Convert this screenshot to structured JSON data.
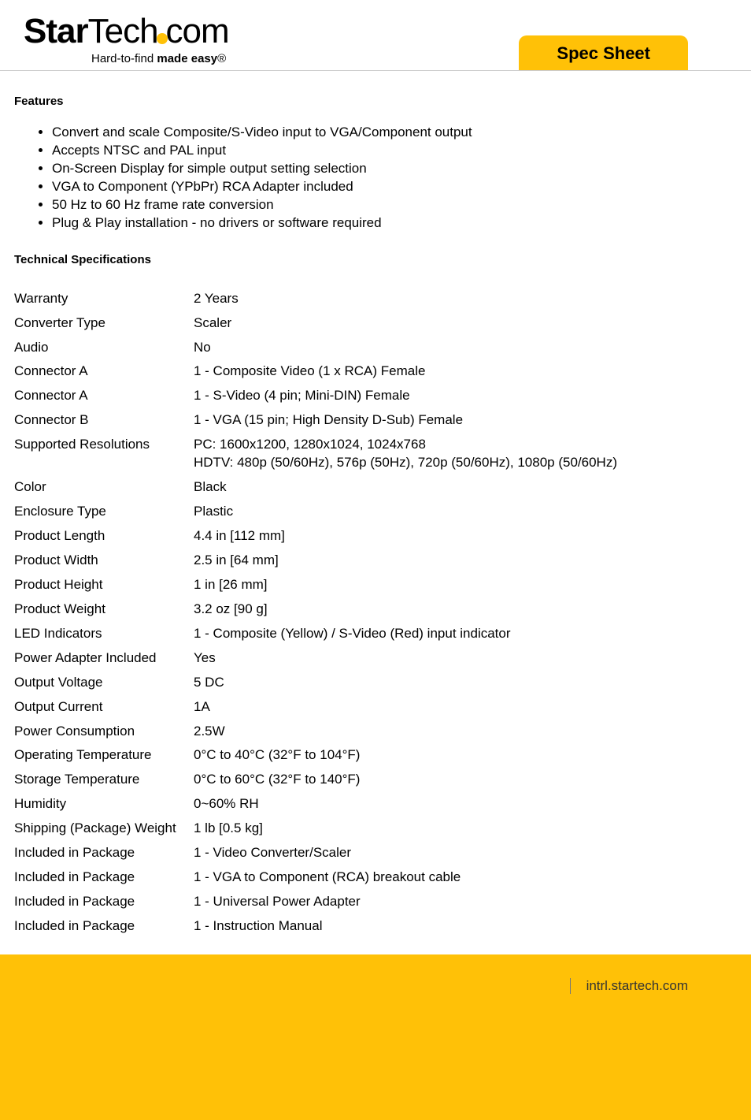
{
  "logo": {
    "part1": "Star",
    "part2": "Tech",
    "part3": "com",
    "tagline_prefix": "Hard-to-find ",
    "tagline_bold": "made easy",
    "tagline_suffix": "®"
  },
  "spec_tab_label": "Spec Sheet",
  "features": {
    "heading": "Features",
    "items": [
      "Convert and scale Composite/S-Video input to VGA/Component output",
      "Accepts NTSC and PAL input",
      "On-Screen Display for simple output setting selection",
      "VGA to Component (YPbPr) RCA Adapter included",
      "50 Hz to 60 Hz frame rate conversion",
      "Plug & Play installation - no drivers or software required"
    ]
  },
  "tech_specs": {
    "heading": "Technical Specifications",
    "rows": [
      {
        "label": "Warranty",
        "value": "2 Years"
      },
      {
        "label": "Converter Type",
        "value": "Scaler"
      },
      {
        "label": "Audio",
        "value": "No"
      },
      {
        "label": "Connector A",
        "value": "1 - Composite Video (1 x RCA) Female"
      },
      {
        "label": "Connector A",
        "value": "1 - S-Video (4 pin; Mini-DIN) Female"
      },
      {
        "label": "Connector B",
        "value": "1 - VGA (15 pin; High Density D-Sub) Female"
      },
      {
        "label": "Supported Resolutions",
        "value": "PC: 1600x1200, 1280x1024, 1024x768\nHDTV: 480p (50/60Hz), 576p (50Hz), 720p (50/60Hz), 1080p (50/60Hz)"
      },
      {
        "label": "Color",
        "value": "Black"
      },
      {
        "label": "Enclosure Type",
        "value": "Plastic"
      },
      {
        "label": "Product Length",
        "value": "4.4 in [112 mm]"
      },
      {
        "label": "Product Width",
        "value": "2.5 in [64 mm]"
      },
      {
        "label": "Product Height",
        "value": "1 in [26 mm]"
      },
      {
        "label": "Product Weight",
        "value": "3.2 oz [90 g]"
      },
      {
        "label": "LED Indicators",
        "value": "1 - Composite (Yellow) / S-Video (Red) input indicator"
      },
      {
        "label": "Power Adapter Included",
        "value": "Yes"
      },
      {
        "label": "Output Voltage",
        "value": "5 DC"
      },
      {
        "label": "Output Current",
        "value": "1A"
      },
      {
        "label": "Power Consumption",
        "value": "2.5W"
      },
      {
        "label": "Operating Temperature",
        "value": "0°C to 40°C (32°F to 104°F)"
      },
      {
        "label": "Storage Temperature",
        "value": "0°C to 60°C (32°F to 140°F)"
      },
      {
        "label": "Humidity",
        "value": "0~60% RH"
      },
      {
        "label": "Shipping (Package) Weight",
        "value": "1 lb [0.5 kg]"
      },
      {
        "label": "Included in Package",
        "value": "1 - Video Converter/Scaler"
      },
      {
        "label": "Included in Package",
        "value": "1 - VGA to Component (RCA) breakout cable"
      },
      {
        "label": "Included in Package",
        "value": "1 - Universal Power Adapter"
      },
      {
        "label": "Included in Package",
        "value": "1 - Instruction Manual"
      }
    ]
  },
  "footer": {
    "url": "intrl.startech.com"
  },
  "colors": {
    "accent": "#ffc107",
    "text": "#000000",
    "divider": "#cccccc"
  }
}
